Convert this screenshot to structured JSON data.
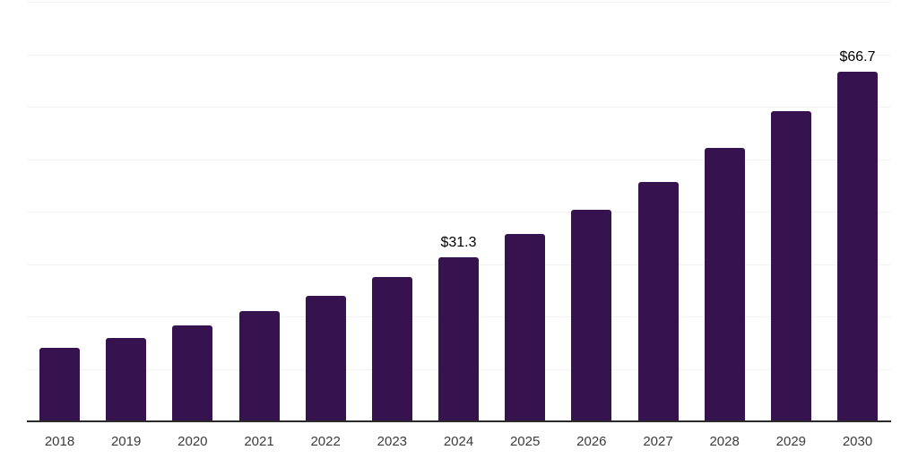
{
  "chart_data": {
    "type": "bar",
    "title": "",
    "xlabel": "",
    "ylabel": "",
    "categories": [
      "2018",
      "2019",
      "2020",
      "2021",
      "2022",
      "2023",
      "2024",
      "2025",
      "2026",
      "2027",
      "2028",
      "2029",
      "2030"
    ],
    "values": [
      14.0,
      15.9,
      18.3,
      21.0,
      23.9,
      27.5,
      31.3,
      35.7,
      40.4,
      45.7,
      52.2,
      59.2,
      66.7
    ],
    "annotations": [
      {
        "category": "2024",
        "text": "$31.3"
      },
      {
        "category": "2030",
        "text": "$66.7"
      }
    ],
    "ylim": [
      0,
      80
    ],
    "grid_step": 10,
    "grid": "horizontal",
    "legend": "none",
    "y_axis_tick_labels_visible": false,
    "colors": {
      "bar": "#36134E",
      "gridline": "#f2f2f2",
      "axis_line": "#2b2b2b",
      "tick_label": "#3c3c3c",
      "annotation": "#000000",
      "background": "#ffffff"
    }
  }
}
